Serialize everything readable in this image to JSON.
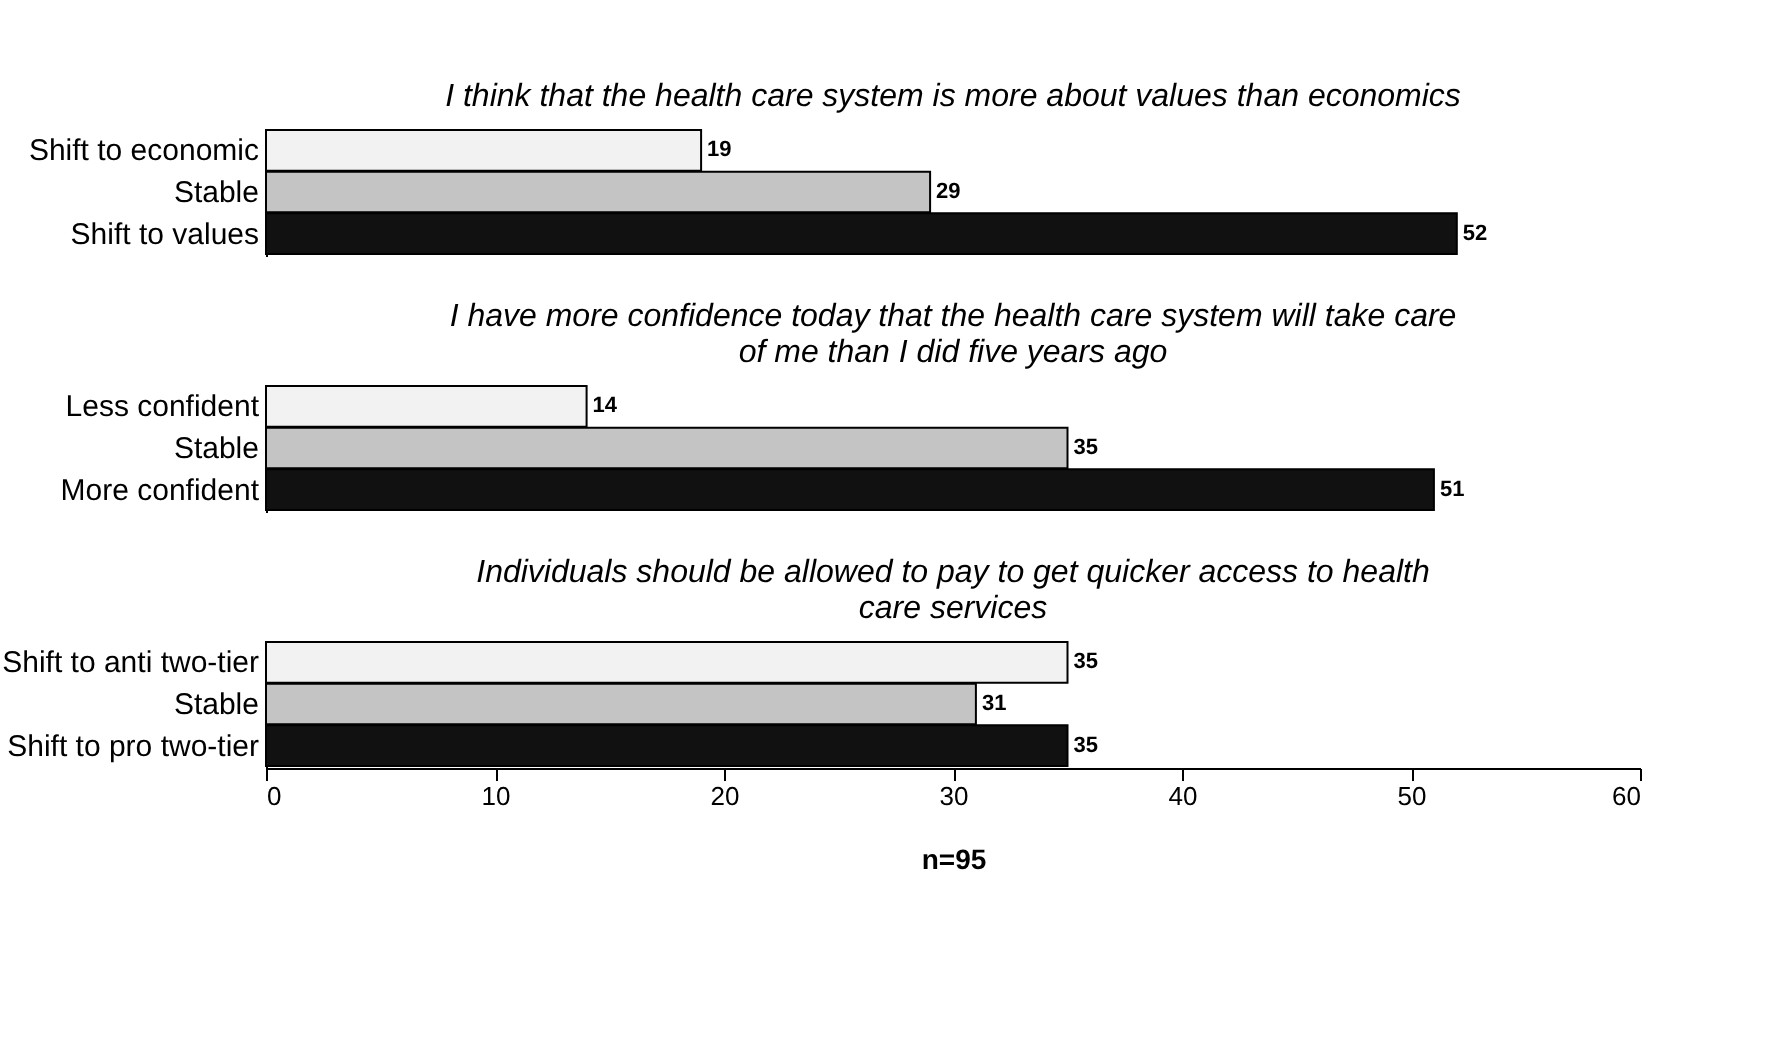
{
  "chart_data": [
    {
      "type": "bar",
      "orientation": "horizontal",
      "title": "I think that the health care system is more about values than economics",
      "categories": [
        "Shift to economic",
        "Stable",
        "Shift to values"
      ],
      "values": [
        19,
        29,
        52
      ],
      "colors": [
        "#f2f2f2",
        "#c4c4c4",
        "#111111"
      ],
      "data_labels": true,
      "xlim": [
        0,
        60
      ],
      "xticks": [
        0,
        10,
        20,
        30,
        40,
        50,
        60
      ],
      "tick_labels": "y",
      "grid": false,
      "legend": false
    },
    {
      "type": "bar",
      "orientation": "horizontal",
      "title": "I have more confidence today that the health care system will take care\nof me than I did five years ago",
      "categories": [
        "Less confident",
        "Stable",
        "More confident"
      ],
      "values": [
        14,
        35,
        51
      ],
      "colors": [
        "#f2f2f2",
        "#c4c4c4",
        "#111111"
      ],
      "data_labels": true,
      "xlim": [
        0,
        60
      ],
      "xticks": [
        0,
        10,
        20,
        30,
        40,
        50,
        60
      ],
      "tick_labels": "y",
      "grid": false,
      "legend": false
    },
    {
      "type": "bar",
      "orientation": "horizontal",
      "title": "Individuals should be allowed to pay to get quicker access to health\ncare services",
      "categories": [
        "Shift to anti two-tier",
        "Stable",
        "Shift to pro two-tier"
      ],
      "values": [
        35,
        31,
        35
      ],
      "colors": [
        "#f2f2f2",
        "#c4c4c4",
        "#111111"
      ],
      "data_labels": true,
      "xlim": [
        0,
        60
      ],
      "xticks": [
        0,
        10,
        20,
        30,
        40,
        50,
        60
      ],
      "xlabel": "n=95",
      "grid": false,
      "legend": false
    }
  ]
}
